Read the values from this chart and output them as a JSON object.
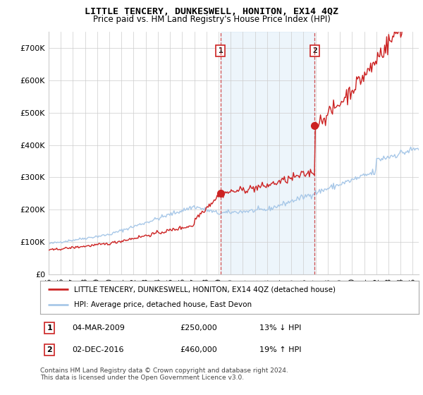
{
  "title": "LITTLE TENCERY, DUNKESWELL, HONITON, EX14 4QZ",
  "subtitle": "Price paid vs. HM Land Registry's House Price Index (HPI)",
  "ylim": [
    0,
    750000
  ],
  "yticks": [
    0,
    100000,
    200000,
    300000,
    400000,
    500000,
    600000,
    700000
  ],
  "ytick_labels": [
    "£0",
    "£100K",
    "£200K",
    "£300K",
    "£400K",
    "£500K",
    "£600K",
    "£700K"
  ],
  "sale1_date": 2009.17,
  "sale1_price": 250000,
  "sale1_label": "1",
  "sale2_date": 2016.92,
  "sale2_price": 460000,
  "sale2_label": "2",
  "hpi_color": "#a8c8e8",
  "price_color": "#cc2222",
  "sale_marker_color": "#cc2222",
  "vline_color": "#cc3333",
  "shade_color": "#ddeeff",
  "legend_label_price": "LITTLE TENCERY, DUNKESWELL, HONITON, EX14 4QZ (detached house)",
  "legend_label_hpi": "HPI: Average price, detached house, East Devon",
  "table_rows": [
    {
      "num": "1",
      "date": "04-MAR-2009",
      "price": "£250,000",
      "pct": "13% ↓ HPI"
    },
    {
      "num": "2",
      "date": "02-DEC-2016",
      "price": "£460,000",
      "pct": "19% ↑ HPI"
    }
  ],
  "footer": "Contains HM Land Registry data © Crown copyright and database right 2024.\nThis data is licensed under the Open Government Licence v3.0.",
  "background_color": "#ffffff",
  "grid_color": "#cccccc",
  "xlim_start": 1995,
  "xlim_end": 2025.5
}
